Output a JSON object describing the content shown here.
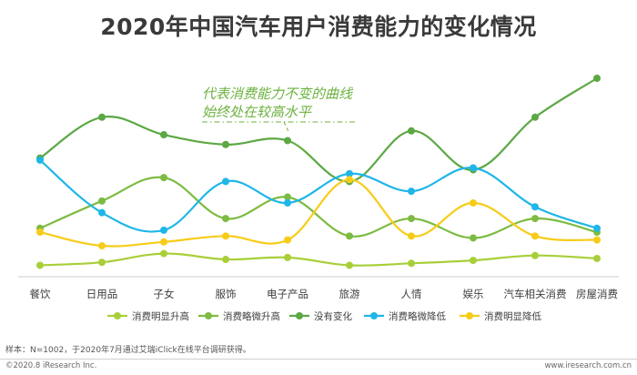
{
  "title": "2020年中国汽车用户消费能力的变化情况",
  "annotation": {
    "line1": "代表消费能力不变的曲线",
    "line2": "始终处在较高水平"
  },
  "footnote": "样本：N=1002，于2020年7月通过艾瑞iClick在线平台调研获得。",
  "copyright": "©2020.8 iResearch Inc.",
  "website": "www.iresearch.com.cn",
  "colors": {
    "annotation": "#6cb23f",
    "axis": "#cccccc"
  },
  "chart_data": {
    "type": "line",
    "categories": [
      "餐饮",
      "日用品",
      "子女",
      "服饰",
      "电子产品",
      "旅游",
      "人情",
      "娱乐",
      "汽车相关消费",
      "房屋消费"
    ],
    "ylim": [
      0,
      100
    ],
    "series": [
      {
        "name": "消费明显升高",
        "color": "#a8cf38",
        "values": [
          4,
          5.5,
          10,
          7,
          8,
          4,
          5,
          6.5,
          9,
          7.5
        ]
      },
      {
        "name": "消费略微升高",
        "color": "#7dbb42",
        "values": [
          23,
          37,
          49,
          28,
          39,
          19,
          28,
          18,
          28,
          21
        ]
      },
      {
        "name": "没有变化",
        "color": "#5ca844",
        "values": [
          59,
          80,
          71,
          66,
          68,
          47,
          73,
          53,
          80,
          100
        ]
      },
      {
        "name": "消费略微降低",
        "color": "#1fb6e8",
        "values": [
          58,
          31,
          22,
          47,
          36,
          51,
          42,
          54,
          34,
          23
        ]
      },
      {
        "name": "消费明显降低",
        "color": "#f7cc19",
        "values": [
          21,
          14,
          16,
          19,
          17,
          48,
          19,
          36,
          19,
          17
        ]
      }
    ]
  }
}
